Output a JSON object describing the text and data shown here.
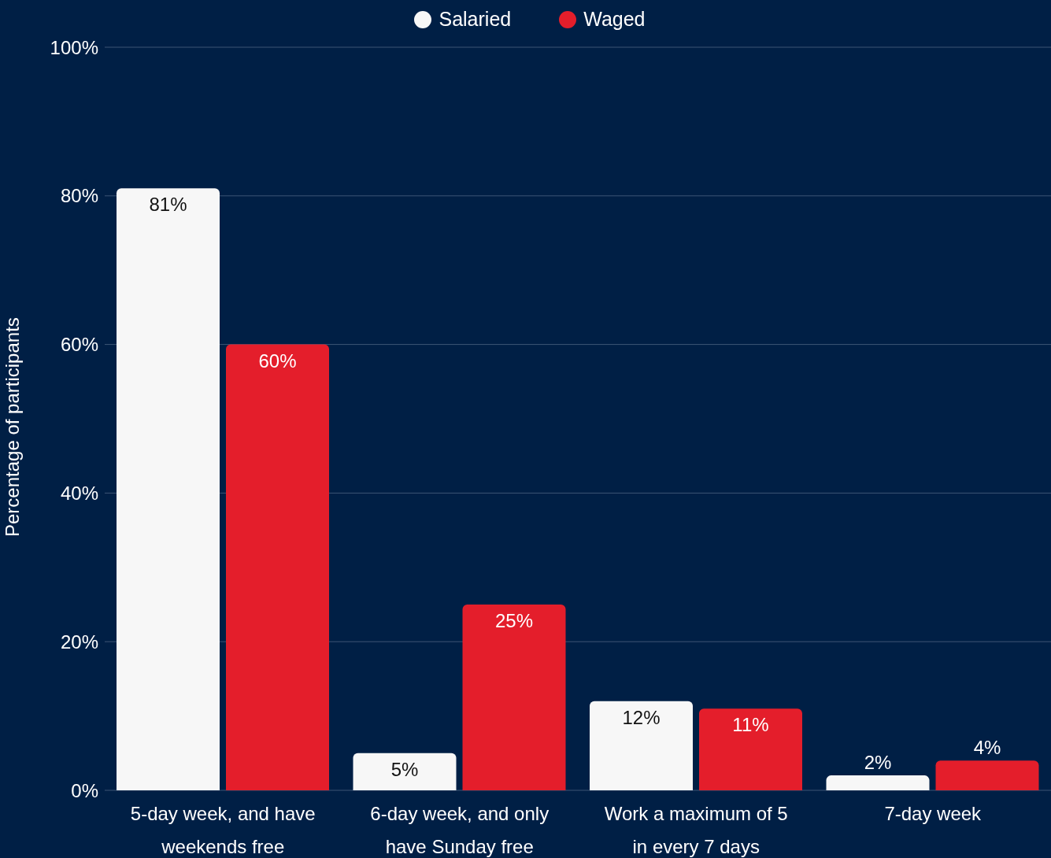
{
  "chart_data": {
    "type": "bar",
    "ylabel": "Percentage of participants",
    "categories": [
      "5-day week, and have weekends free",
      "6-day week, and only have Sunday free",
      "Work a maximum of 5 in every 7 days",
      "7-day week"
    ],
    "series": [
      {
        "name": "Salaried",
        "color": "#f7f7f7",
        "values": [
          81,
          5,
          12,
          2
        ],
        "value_labels": [
          "81%",
          "5%",
          "12%",
          "2%"
        ]
      },
      {
        "name": "Waged",
        "color": "#e41e2b",
        "values": [
          60,
          25,
          11,
          4
        ],
        "value_labels": [
          "60%",
          "25%",
          "11%",
          "4%"
        ]
      }
    ],
    "ylim": [
      0,
      100
    ],
    "yticks": [
      {
        "value": 0,
        "label": "0%"
      },
      {
        "value": 20,
        "label": "20%"
      },
      {
        "value": 40,
        "label": "40%"
      },
      {
        "value": 60,
        "label": "60%"
      },
      {
        "value": 80,
        "label": "80%"
      },
      {
        "value": 100,
        "label": "100%"
      }
    ],
    "grid": "y",
    "legend": "top"
  }
}
